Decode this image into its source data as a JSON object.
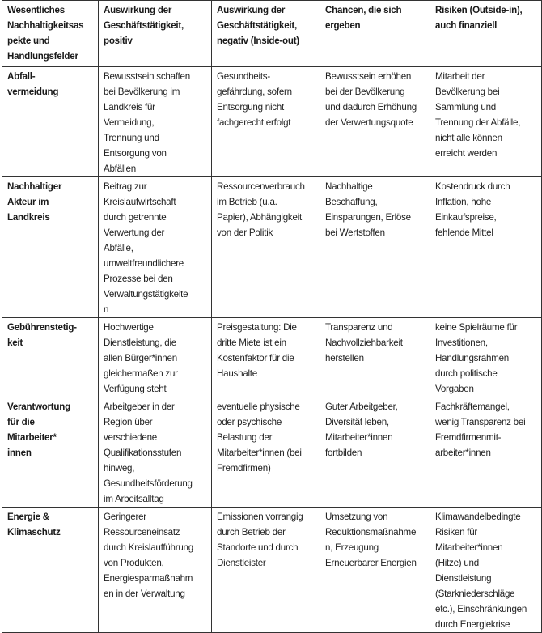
{
  "table": {
    "headers": [
      "Wesentliches\nNachhaltigkeitsas\npekte und\nHandlungsfelder",
      "Auswirkung der\nGeschäftstätigkeit,\npositiv",
      "Auswirkung der\nGeschäftstätigkeit,\nnegativ (Inside-out)",
      "Chancen, die sich\nergeben",
      "Risiken (Outside-in),\nauch finanziell"
    ],
    "rows": [
      [
        "Abfall-\nvermeidung",
        "Bewusstsein schaffen\nbei Bevölkerung im\nLandkreis für\nVermeidung,\nTrennung und\nEntsorgung von\nAbfällen",
        "Gesundheits-\ngefährdung, sofern\nEntsorgung nicht\nfachgerecht erfolgt",
        "Bewusstsein erhöhen\nbei der Bevölkerung\nund dadurch Erhöhung\nder Verwertungsquote",
        "Mitarbeit der\nBevölkerung bei\nSammlung und\nTrennung der Abfälle,\nnicht alle können\nerreicht werden"
      ],
      [
        "Nachhaltiger\nAkteur im\nLandkreis",
        "Beitrag zur\nKreislaufwirtschaft\ndurch getrennte\nVerwertung der\nAbfälle,\numweltfreundlichere\nProzesse bei den\nVerwaltungstätigkeite\nn",
        "Ressourcenverbrauch\nim Betrieb (u.a.\nPapier), Abhängigkeit\nvon der Politik",
        "Nachhaltige\nBeschaffung,\nEinsparungen, Erlöse\nbei Wertstoffen",
        "Kostendruck durch\nInflation, hohe\nEinkaufspreise,\nfehlende Mittel"
      ],
      [
        "Gebührenstetig-\nkeit",
        "Hochwertige\nDienstleistung, die\nallen Bürger*innen\ngleichermaßen zur\nVerfügung steht",
        "Preisgestaltung: Die\ndritte Miete ist ein\nKostenfaktor für die\nHaushalte",
        "Transparenz und\nNachvollziehbarkeit\nherstellen",
        "keine Spielräume für\nInvestitionen,\nHandlungsrahmen\ndurch politische\nVorgaben"
      ],
      [
        "Verantwortung\nfür die\nMitarbeiter*\ninnen",
        "Arbeitgeber in der\nRegion über\nverschiedene\nQualifikationsstufen\nhinweg,\nGesundheitsförderung\nim Arbeitsalltag",
        "eventuelle physische\noder psychische\nBelastung der\nMitarbeiter*innen (bei\nFremdfirmen)",
        "Guter Arbeitgeber,\nDiversität leben,\nMitarbeiter*innen\nfortbilden",
        "Fachkräftemangel,\nwenig Transparenz bei\nFremdfirmenmit-\narbeiter*innen"
      ],
      [
        "Energie &\nKlimaschutz",
        "Geringerer\nRessourceneinsatz\ndurch Kreislaufführung\nvon Produkten,\nEnergiesparmaßnahm\nen in der Verwaltung",
        "Emissionen vorrangig\ndurch Betrieb der\nStandorte und durch\nDienstleister",
        "Umsetzung von\nReduktionsmaßnahme\nn, Erzeugung\nErneuerbarer Energien",
        "Klimawandelbedingte\nRisiken für\nMitarbeiter*innen\n(Hitze) und\nDienstleistung\n(Starkniederschläge\netc.), Einschränkungen\ndurch Energiekrise"
      ]
    ]
  }
}
